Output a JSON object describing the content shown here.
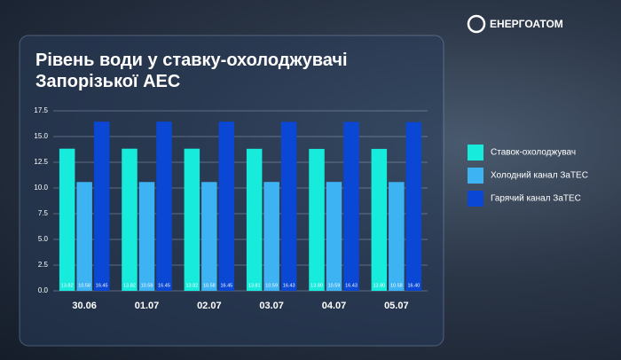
{
  "logo": "ЕНЕРГОАТОМ",
  "chart_data": {
    "type": "bar",
    "title": "Рівень води у ставку-охолоджувачі Запорізької АЕС",
    "categories": [
      "30.06",
      "01.07",
      "02.07",
      "03.07",
      "04.07",
      "05.07"
    ],
    "series": [
      {
        "name": "Ставок-охолоджувач",
        "color": "#17ecdc",
        "values": [
          13.82,
          13.82,
          13.82,
          13.81,
          13.8,
          13.8
        ],
        "value_labels": [
          "13.82",
          "13.82",
          "13.82",
          "13.81",
          "13.80",
          "13.80"
        ]
      },
      {
        "name": "Холодний канал ЗаТЕС",
        "color": "#3db3f4",
        "values": [
          10.58,
          10.58,
          10.58,
          10.59,
          10.59,
          10.58
        ],
        "value_labels": [
          "10.58",
          "10.58",
          "10.58",
          "10.59",
          "10.59",
          "10.58"
        ]
      },
      {
        "name": "Гарячий канал ЗаТЕС",
        "color": "#0a47d4",
        "values": [
          16.45,
          16.45,
          16.45,
          16.43,
          16.43,
          16.4
        ],
        "value_labels": [
          "16.45",
          "16.45",
          "16.45",
          "16.43",
          "16.43",
          "16.40"
        ]
      }
    ],
    "ylim": [
      0,
      17.5
    ],
    "yticks": [
      {
        "value": 0,
        "label": "0.0"
      },
      2.5,
      {
        "value": 5,
        "label": "5.0"
      },
      7.5,
      {
        "value": 10,
        "label": "10.0"
      },
      12.5,
      {
        "value": 15,
        "label": "15.0"
      },
      17.5
    ],
    "grid": true,
    "legend": "right"
  }
}
